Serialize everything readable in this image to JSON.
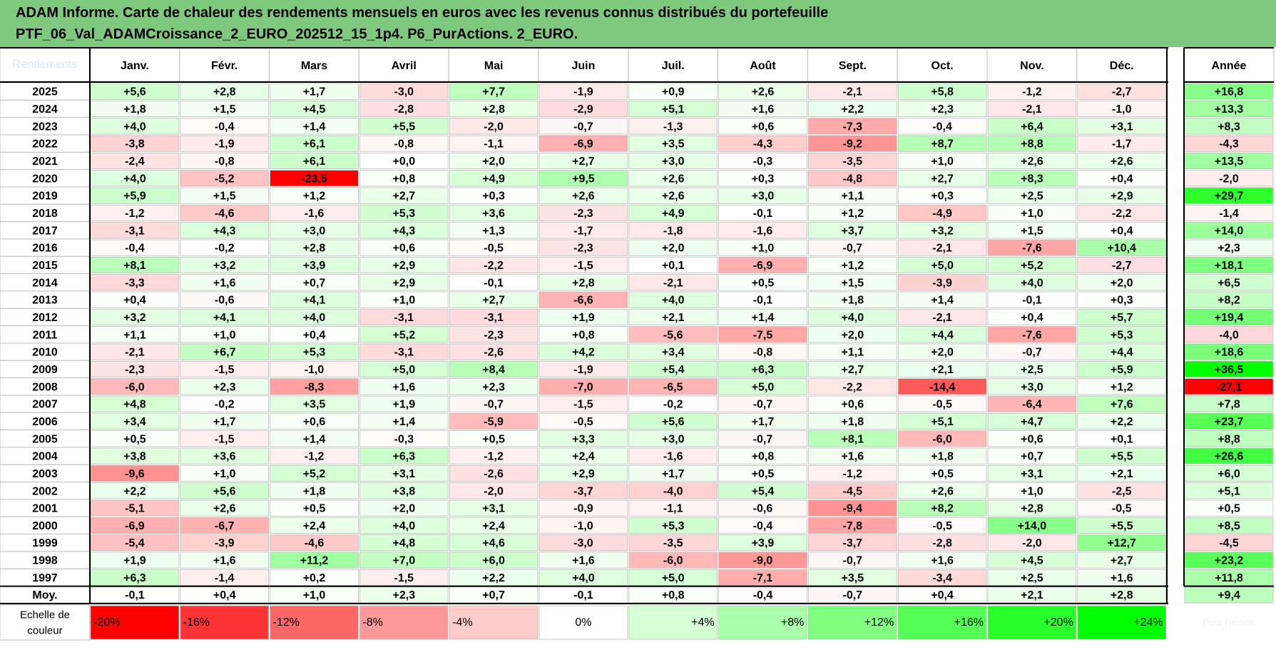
{
  "title": {
    "line1": "ADAM Informe. Carte de chaleur des rendements mensuels en euros avec les revenus connus distribués du portefeuille",
    "line2": "PTF_06_Val_ADAMCroissance_2_EURO_202512_15_1p4. P6_PurActions. 2_EURO."
  },
  "chart_data": {
    "type": "heatmap",
    "title": "ADAM Informe. Carte de chaleur des rendements mensuels en euros avec les revenus connus distribués du portefeuille PTF_06_Val_ADAMCroissance_2_EURO_202512_15_1p4. P6_PurActions. 2_EURO.",
    "corner_label": "Rendements",
    "months": [
      "Janv.",
      "Févr.",
      "Mars",
      "Avril",
      "Mai",
      "Juin",
      "Juil.",
      "Août",
      "Sept.",
      "Oct.",
      "Nov.",
      "Déc."
    ],
    "year_column_label": "Année",
    "rows": [
      {
        "year": "2025",
        "months": [
          "+5,6",
          "+2,8",
          "+1,7",
          "-3,0",
          "+7,7",
          "-1,9",
          "+0,9",
          "+2,6",
          "-2,1",
          "+5,8",
          "-1,2",
          "-2,7"
        ],
        "annual": "+16,8"
      },
      {
        "year": "2024",
        "months": [
          "+1,8",
          "+1,5",
          "+4,5",
          "-2,8",
          "+2,8",
          "-2,9",
          "+5,1",
          "+1,6",
          "+2,2",
          "+2,3",
          "-2,1",
          "-1,0"
        ],
        "annual": "+13,3"
      },
      {
        "year": "2023",
        "months": [
          "+4,0",
          "-0,4",
          "+1,4",
          "+5,5",
          "-2,0",
          "-0,7",
          "-1,3",
          "+0,6",
          "-7,3",
          "-0,4",
          "+6,4",
          "+3,1"
        ],
        "annual": "+8,3"
      },
      {
        "year": "2022",
        "months": [
          "-3,8",
          "-1,9",
          "+6,1",
          "-0,8",
          "-1,1",
          "-6,9",
          "+3,5",
          "-4,3",
          "-9,2",
          "+8,7",
          "+8,8",
          "-1,7"
        ],
        "annual": "-4,3"
      },
      {
        "year": "2021",
        "months": [
          "-2,4",
          "-0,8",
          "+6,1",
          "+0,0",
          "+2,0",
          "+2,7",
          "+3,0",
          "-0,3",
          "-3,5",
          "+1,0",
          "+2,6",
          "+2,6"
        ],
        "annual": "+13,5"
      },
      {
        "year": "2020",
        "months": [
          "+4,0",
          "-5,2",
          "-23,5",
          "+0,8",
          "+4,9",
          "+9,5",
          "+2,6",
          "+0,3",
          "-4,8",
          "+2,7",
          "+8,3",
          "+0,4"
        ],
        "annual": "-2,0"
      },
      {
        "year": "2019",
        "months": [
          "+5,9",
          "+1,5",
          "+1,2",
          "+2,7",
          "+0,3",
          "+2,6",
          "+2,6",
          "+3,0",
          "+1,1",
          "+0,3",
          "+2,5",
          "+2,9"
        ],
        "annual": "+29,7"
      },
      {
        "year": "2018",
        "months": [
          "-1,2",
          "-4,6",
          "-1,6",
          "+5,3",
          "+3,6",
          "-2,3",
          "+4,9",
          "-0,1",
          "+1,2",
          "-4,9",
          "+1,0",
          "-2,2"
        ],
        "annual": "-1,4"
      },
      {
        "year": "2017",
        "months": [
          "-3,1",
          "+4,3",
          "+3,0",
          "+4,3",
          "+1,3",
          "-1,7",
          "-1,8",
          "-1,6",
          "+3,7",
          "+3,2",
          "+1,5",
          "+0,4"
        ],
        "annual": "+14,0"
      },
      {
        "year": "2016",
        "months": [
          "-0,4",
          "-0,2",
          "+2,8",
          "+0,6",
          "-0,5",
          "-2,3",
          "+2,0",
          "+1,0",
          "-0,7",
          "-2,1",
          "-7,6",
          "+10,4"
        ],
        "annual": "+2,3"
      },
      {
        "year": "2015",
        "months": [
          "+8,1",
          "+3,2",
          "+3,9",
          "+2,9",
          "-2,2",
          "-1,5",
          "+0,1",
          "-6,9",
          "+1,2",
          "+5,0",
          "+5,2",
          "-2,7"
        ],
        "annual": "+18,1"
      },
      {
        "year": "2014",
        "months": [
          "-3,3",
          "+1,6",
          "+0,7",
          "+2,9",
          "-0,1",
          "+2,8",
          "-2,1",
          "+0,5",
          "+1,5",
          "-3,9",
          "+4,0",
          "+2,0"
        ],
        "annual": "+6,5"
      },
      {
        "year": "2013",
        "months": [
          "+0,4",
          "-0,6",
          "+4,1",
          "+1,0",
          "+2,7",
          "-6,6",
          "+4,0",
          "-0,1",
          "+1,8",
          "+1,4",
          "-0,1",
          "+0,3"
        ],
        "annual": "+8,2"
      },
      {
        "year": "2012",
        "months": [
          "+3,2",
          "+4,1",
          "+4,0",
          "-3,1",
          "-3,1",
          "+1,9",
          "+2,1",
          "+1,4",
          "+4,0",
          "-2,1",
          "+0,4",
          "+5,7"
        ],
        "annual": "+19,4"
      },
      {
        "year": "2011",
        "months": [
          "+1,1",
          "+1,0",
          "+0,4",
          "+5,2",
          "-2,3",
          "+0,8",
          "-5,6",
          "-7,5",
          "+2,0",
          "+4,4",
          "-7,6",
          "+5,3"
        ],
        "annual": "-4,0"
      },
      {
        "year": "2010",
        "months": [
          "-2,1",
          "+6,7",
          "+5,3",
          "-3,1",
          "-2,6",
          "+4,2",
          "+3,4",
          "-0,8",
          "+1,1",
          "+2,0",
          "-0,7",
          "+4,4"
        ],
        "annual": "+18,6"
      },
      {
        "year": "2009",
        "months": [
          "-2,3",
          "-1,5",
          "-1,0",
          "+5,0",
          "+8,4",
          "-1,9",
          "+5,4",
          "+6,3",
          "+2,7",
          "+2,1",
          "+2,5",
          "+5,9"
        ],
        "annual": "+36,5"
      },
      {
        "year": "2008",
        "months": [
          "-6,0",
          "+2,3",
          "-8,3",
          "+1,6",
          "+2,3",
          "-7,0",
          "-6,5",
          "+5,0",
          "-2,2",
          "-14,4",
          "+3,0",
          "+1,2"
        ],
        "annual": "-27,1"
      },
      {
        "year": "2007",
        "months": [
          "+4,8",
          "-0,2",
          "+3,5",
          "+1,9",
          "-0,7",
          "-1,5",
          "-0,2",
          "-0,7",
          "+0,6",
          "-0,5",
          "-6,4",
          "+7,6"
        ],
        "annual": "+7,8"
      },
      {
        "year": "2006",
        "months": [
          "+3,4",
          "+1,7",
          "+0,6",
          "+1,4",
          "-5,9",
          "-0,5",
          "+5,6",
          "+1,7",
          "+1,8",
          "+5,1",
          "+4,7",
          "+2,2"
        ],
        "annual": "+23,7"
      },
      {
        "year": "2005",
        "months": [
          "+0,5",
          "-1,5",
          "+1,4",
          "-0,3",
          "+0,5",
          "+3,3",
          "+3,0",
          "-0,7",
          "+8,1",
          "-6,0",
          "+0,6",
          "+0,1"
        ],
        "annual": "+8,8"
      },
      {
        "year": "2004",
        "months": [
          "+3,8",
          "+3,6",
          "-1,2",
          "+6,3",
          "-1,2",
          "+2,4",
          "-1,6",
          "+0,8",
          "+1,6",
          "+1,8",
          "+0,7",
          "+5,5"
        ],
        "annual": "+26,6"
      },
      {
        "year": "2003",
        "months": [
          "-9,6",
          "+1,0",
          "+5,2",
          "+3,1",
          "-2,6",
          "+2,9",
          "+1,7",
          "+0,5",
          "-1,2",
          "+0,5",
          "+3,1",
          "+2,1"
        ],
        "annual": "+6,0"
      },
      {
        "year": "2002",
        "months": [
          "+2,2",
          "+5,6",
          "+1,8",
          "+3,8",
          "-2,0",
          "-3,7",
          "-4,0",
          "+5,4",
          "-4,5",
          "+2,6",
          "+1,0",
          "-2,5"
        ],
        "annual": "+5,1"
      },
      {
        "year": "2001",
        "months": [
          "-5,1",
          "+2,6",
          "+0,5",
          "+2,0",
          "+3,1",
          "-0,9",
          "-1,1",
          "-0,6",
          "-9,4",
          "+8,2",
          "+2,8",
          "-0,5"
        ],
        "annual": "+0,5"
      },
      {
        "year": "2000",
        "months": [
          "-6,9",
          "-6,7",
          "+2,4",
          "+4,0",
          "+2,4",
          "-1,0",
          "+5,3",
          "-0,4",
          "-7,8",
          "-0,5",
          "+14,0",
          "+5,5"
        ],
        "annual": "+8,5"
      },
      {
        "year": "1999",
        "months": [
          "-5,4",
          "-3,9",
          "-4,6",
          "+4,8",
          "+4,6",
          "-3,0",
          "-3,5",
          "+3,9",
          "-3,7",
          "-2,8",
          "-2,0",
          "+12,7"
        ],
        "annual": "-4,5"
      },
      {
        "year": "1998",
        "months": [
          "+1,9",
          "+1,6",
          "+11,2",
          "+7,0",
          "+6,0",
          "+1,6",
          "-6,0",
          "-9,0",
          "-0,7",
          "+1,6",
          "+4,5",
          "+2,7"
        ],
        "annual": "+23,2"
      },
      {
        "year": "1997",
        "months": [
          "+6,3",
          "-1,4",
          "+0,2",
          "-1,5",
          "+2,2",
          "+4,0",
          "+5,0",
          "-7,1",
          "+3,5",
          "-3,4",
          "+2,5",
          "+1,6"
        ],
        "annual": "+11,8"
      }
    ],
    "average": {
      "label": "Moy.",
      "months": [
        "-0,1",
        "+0,4",
        "+1,0",
        "+2,3",
        "+0,7",
        "-0,1",
        "+0,8",
        "-0,4",
        "-0,7",
        "+0,4",
        "+2,1",
        "+2,8"
      ],
      "annual": "+9,4"
    },
    "color_scale": {
      "label": "Echelle de couleur",
      "steps": [
        "-20%",
        "-16%",
        "-12%",
        "-8%",
        "-4%",
        "0%",
        "+4%",
        "+8%",
        "+12%",
        "+16%",
        "+20%",
        "+24%"
      ],
      "annual_label": "Pour l'année"
    },
    "colors": {
      "title_background": "#7fc97f",
      "strong_negative": "#ff0000",
      "neutral": "#ffffff",
      "strong_positive": "#00ff00"
    }
  }
}
